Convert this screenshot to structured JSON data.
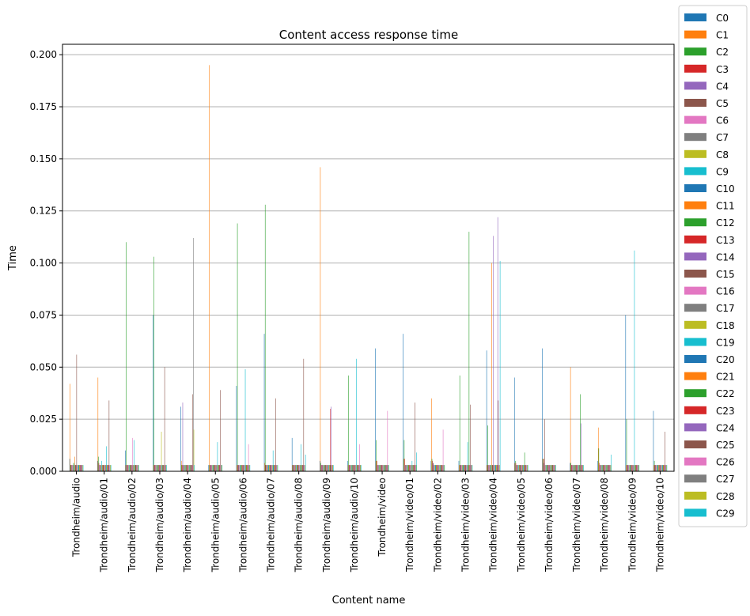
{
  "chart_data": {
    "type": "bar",
    "title": "Content access response time",
    "xlabel": "Content name",
    "ylabel": "Time",
    "ylim": [
      0,
      0.205
    ],
    "yticks": [
      "0.000",
      "0.025",
      "0.050",
      "0.075",
      "0.100",
      "0.125",
      "0.150",
      "0.175",
      "0.200"
    ],
    "grid": "horizontal",
    "legend_position": "outside-right",
    "categories": [
      "Trondheim/audio",
      "Trondheim/audio/01",
      "Trondheim/audio/02",
      "Trondheim/audio/03",
      "Trondheim/audio/04",
      "Trondheim/audio/05",
      "Trondheim/audio/06",
      "Trondheim/audio/07",
      "Trondheim/audio/08",
      "Trondheim/audio/09",
      "Trondheim/audio/10",
      "Trondheim/video",
      "Trondheim/video/01",
      "Trondheim/video/02",
      "Trondheim/video/03",
      "Trondheim/video/04",
      "Trondheim/video/05",
      "Trondheim/video/06",
      "Trondheim/video/07",
      "Trondheim/video/08",
      "Trondheim/video/09",
      "Trondheim/video/10"
    ],
    "colors": [
      "#1f77b4",
      "#ff7f0e",
      "#2ca02c",
      "#d62728",
      "#9467bd",
      "#8c564b",
      "#e377c2",
      "#7f7f7f",
      "#bcbd22",
      "#17becf"
    ],
    "series": [
      {
        "name": "C0",
        "values": [
          0.006,
          0.005,
          0.01,
          0.075,
          0.031,
          0.003,
          0.041,
          0.066,
          0.016,
          0.005,
          0.005,
          0.059,
          0.066,
          0.005,
          0.005,
          0.058,
          0.045,
          0.059,
          0.004,
          0.005,
          0.075,
          0.029
        ]
      },
      {
        "name": "C1",
        "values": [
          0.042,
          0.045,
          0.003,
          0.003,
          0.005,
          0.195,
          0.003,
          0.004,
          0.003,
          0.146,
          0.003,
          0.005,
          0.006,
          0.035,
          0.003,
          0.003,
          0.004,
          0.006,
          0.05,
          0.021,
          0.003,
          0.003
        ]
      },
      {
        "name": "C2",
        "values": [
          0.003,
          0.007,
          0.11,
          0.103,
          0.003,
          0.003,
          0.119,
          0.128,
          0.003,
          0.004,
          0.046,
          0.015,
          0.015,
          0.006,
          0.046,
          0.022,
          0.005,
          0.006,
          0.004,
          0.011,
          0.025,
          0.005
        ]
      },
      {
        "name": "C3",
        "values": [
          0.003,
          0.004,
          0.003,
          0.003,
          0.003,
          0.003,
          0.003,
          0.003,
          0.003,
          0.003,
          0.003,
          0.005,
          0.006,
          0.005,
          0.003,
          0.003,
          0.004,
          0.006,
          0.003,
          0.004,
          0.003,
          0.003
        ]
      },
      {
        "name": "C4",
        "values": [
          0.003,
          0.003,
          0.003,
          0.003,
          0.033,
          0.003,
          0.003,
          0.003,
          0.003,
          0.003,
          0.003,
          0.003,
          0.003,
          0.004,
          0.003,
          0.003,
          0.003,
          0.004,
          0.003,
          0.003,
          0.003,
          0.003
        ]
      },
      {
        "name": "C5",
        "values": [
          0.003,
          0.003,
          0.003,
          0.003,
          0.003,
          0.003,
          0.003,
          0.003,
          0.003,
          0.003,
          0.003,
          0.003,
          0.003,
          0.004,
          0.003,
          0.003,
          0.003,
          0.025,
          0.003,
          0.003,
          0.003,
          0.003
        ]
      },
      {
        "name": "C6",
        "values": [
          0.003,
          0.003,
          0.003,
          0.003,
          0.003,
          0.003,
          0.003,
          0.003,
          0.003,
          0.003,
          0.003,
          0.003,
          0.003,
          0.003,
          0.003,
          0.003,
          0.003,
          0.003,
          0.003,
          0.003,
          0.003,
          0.003
        ]
      },
      {
        "name": "C7",
        "values": [
          0.003,
          0.003,
          0.003,
          0.003,
          0.003,
          0.003,
          0.003,
          0.003,
          0.003,
          0.003,
          0.003,
          0.003,
          0.003,
          0.003,
          0.003,
          0.003,
          0.003,
          0.003,
          0.003,
          0.003,
          0.003,
          0.003
        ]
      },
      {
        "name": "C8",
        "values": [
          0.004,
          0.003,
          0.003,
          0.003,
          0.003,
          0.003,
          0.003,
          0.003,
          0.003,
          0.003,
          0.003,
          0.003,
          0.003,
          0.003,
          0.003,
          0.003,
          0.003,
          0.003,
          0.003,
          0.003,
          0.003,
          0.003
        ]
      },
      {
        "name": "C9",
        "values": [
          0.004,
          0.005,
          0.003,
          0.003,
          0.003,
          0.003,
          0.003,
          0.003,
          0.003,
          0.003,
          0.003,
          0.003,
          0.003,
          0.003,
          0.003,
          0.003,
          0.003,
          0.003,
          0.003,
          0.003,
          0.003,
          0.003
        ]
      },
      {
        "name": "C10",
        "values": [
          0.003,
          0.003,
          0.003,
          0.003,
          0.003,
          0.003,
          0.003,
          0.003,
          0.003,
          0.003,
          0.003,
          0.003,
          0.003,
          0.003,
          0.003,
          0.003,
          0.003,
          0.003,
          0.003,
          0.003,
          0.003,
          0.003
        ]
      },
      {
        "name": "C11",
        "values": [
          0.007,
          0.003,
          0.003,
          0.003,
          0.003,
          0.003,
          0.003,
          0.003,
          0.003,
          0.003,
          0.003,
          0.003,
          0.003,
          0.003,
          0.003,
          0.1,
          0.003,
          0.003,
          0.003,
          0.003,
          0.003,
          0.003
        ]
      },
      {
        "name": "C12",
        "values": [
          0.003,
          0.003,
          0.003,
          0.003,
          0.003,
          0.003,
          0.003,
          0.003,
          0.003,
          0.003,
          0.003,
          0.003,
          0.003,
          0.003,
          0.003,
          0.003,
          0.003,
          0.003,
          0.003,
          0.003,
          0.003,
          0.003
        ]
      },
      {
        "name": "C13",
        "values": [
          0.003,
          0.003,
          0.003,
          0.003,
          0.003,
          0.003,
          0.003,
          0.003,
          0.003,
          0.003,
          0.003,
          0.003,
          0.003,
          0.003,
          0.003,
          0.003,
          0.003,
          0.003,
          0.003,
          0.003,
          0.003,
          0.003
        ]
      },
      {
        "name": "C14",
        "values": [
          0.003,
          0.003,
          0.003,
          0.003,
          0.003,
          0.003,
          0.003,
          0.003,
          0.003,
          0.003,
          0.003,
          0.003,
          0.003,
          0.003,
          0.003,
          0.113,
          0.003,
          0.003,
          0.003,
          0.003,
          0.003,
          0.003
        ]
      },
      {
        "name": "C15",
        "values": [
          0.056,
          0.003,
          0.003,
          0.003,
          0.003,
          0.003,
          0.003,
          0.003,
          0.003,
          0.003,
          0.003,
          0.003,
          0.003,
          0.003,
          0.003,
          0.003,
          0.003,
          0.003,
          0.003,
          0.003,
          0.003,
          0.003
        ]
      },
      {
        "name": "C16",
        "values": [
          0.003,
          0.003,
          0.016,
          0.003,
          0.003,
          0.003,
          0.003,
          0.003,
          0.003,
          0.003,
          0.003,
          0.003,
          0.003,
          0.003,
          0.003,
          0.003,
          0.003,
          0.003,
          0.003,
          0.003,
          0.003,
          0.003
        ]
      },
      {
        "name": "C17",
        "values": [
          0.003,
          0.003,
          0.003,
          0.003,
          0.003,
          0.003,
          0.003,
          0.003,
          0.003,
          0.003,
          0.003,
          0.003,
          0.003,
          0.003,
          0.003,
          0.003,
          0.003,
          0.003,
          0.003,
          0.003,
          0.003,
          0.003
        ]
      },
      {
        "name": "C18",
        "values": [
          0.003,
          0.003,
          0.003,
          0.019,
          0.003,
          0.003,
          0.003,
          0.003,
          0.003,
          0.003,
          0.003,
          0.003,
          0.003,
          0.003,
          0.003,
          0.003,
          0.003,
          0.003,
          0.003,
          0.003,
          0.003,
          0.003
        ]
      },
      {
        "name": "C19",
        "values": [
          0.003,
          0.012,
          0.015,
          0.003,
          0.003,
          0.014,
          0.049,
          0.01,
          0.013,
          0.003,
          0.054,
          0.003,
          0.005,
          0.003,
          0.014,
          0.003,
          0.003,
          0.003,
          0.003,
          0.003,
          0.106,
          0.003
        ]
      },
      {
        "name": "C20",
        "values": [
          0.003,
          0.003,
          0.003,
          0.003,
          0.003,
          0.003,
          0.003,
          0.003,
          0.003,
          0.003,
          0.003,
          0.003,
          0.003,
          0.003,
          0.003,
          0.003,
          0.003,
          0.003,
          0.003,
          0.003,
          0.003,
          0.003
        ]
      },
      {
        "name": "C21",
        "values": [
          0.003,
          0.003,
          0.003,
          0.003,
          0.003,
          0.003,
          0.003,
          0.003,
          0.003,
          0.003,
          0.003,
          0.003,
          0.003,
          0.003,
          0.003,
          0.003,
          0.003,
          0.003,
          0.003,
          0.003,
          0.003,
          0.003
        ]
      },
      {
        "name": "C22",
        "values": [
          0.003,
          0.003,
          0.003,
          0.003,
          0.003,
          0.003,
          0.003,
          0.003,
          0.003,
          0.003,
          0.003,
          0.003,
          0.003,
          0.003,
          0.115,
          0.003,
          0.009,
          0.003,
          0.037,
          0.003,
          0.003,
          0.003
        ]
      },
      {
        "name": "C23",
        "values": [
          0.003,
          0.003,
          0.003,
          0.003,
          0.003,
          0.003,
          0.003,
          0.003,
          0.003,
          0.03,
          0.003,
          0.003,
          0.003,
          0.003,
          0.003,
          0.003,
          0.003,
          0.003,
          0.003,
          0.003,
          0.003,
          0.003
        ]
      },
      {
        "name": "C24",
        "values": [
          0.003,
          0.003,
          0.003,
          0.003,
          0.003,
          0.003,
          0.003,
          0.003,
          0.003,
          0.031,
          0.003,
          0.003,
          0.003,
          0.003,
          0.003,
          0.122,
          0.003,
          0.003,
          0.023,
          0.003,
          0.003,
          0.003
        ]
      },
      {
        "name": "C25",
        "values": [
          0.003,
          0.034,
          0.003,
          0.05,
          0.037,
          0.039,
          0.003,
          0.035,
          0.054,
          0.003,
          0.003,
          0.003,
          0.033,
          0.003,
          0.032,
          0.034,
          0.003,
          0.003,
          0.003,
          0.003,
          0.003,
          0.019
        ]
      },
      {
        "name": "C26",
        "values": [
          0.003,
          0.003,
          0.003,
          0.003,
          0.003,
          0.003,
          0.013,
          0.003,
          0.003,
          0.003,
          0.013,
          0.029,
          0.003,
          0.02,
          0.003,
          0.003,
          0.003,
          0.003,
          0.003,
          0.003,
          0.003,
          0.003
        ]
      },
      {
        "name": "C27",
        "values": [
          0.003,
          0.003,
          0.003,
          0.003,
          0.112,
          0.003,
          0.003,
          0.003,
          0.003,
          0.003,
          0.003,
          0.003,
          0.003,
          0.003,
          0.003,
          0.003,
          0.003,
          0.003,
          0.003,
          0.003,
          0.003,
          0.003
        ]
      },
      {
        "name": "C28",
        "values": [
          0.003,
          0.003,
          0.003,
          0.003,
          0.02,
          0.003,
          0.003,
          0.003,
          0.003,
          0.003,
          0.003,
          0.003,
          0.003,
          0.003,
          0.003,
          0.003,
          0.003,
          0.003,
          0.003,
          0.003,
          0.003,
          0.003
        ]
      },
      {
        "name": "C29",
        "values": [
          0.003,
          0.003,
          0.003,
          0.003,
          0.003,
          0.003,
          0.003,
          0.003,
          0.008,
          0.003,
          0.003,
          0.003,
          0.009,
          0.003,
          0.003,
          0.101,
          0.003,
          0.003,
          0.003,
          0.008,
          0.003,
          0.003
        ]
      }
    ]
  }
}
